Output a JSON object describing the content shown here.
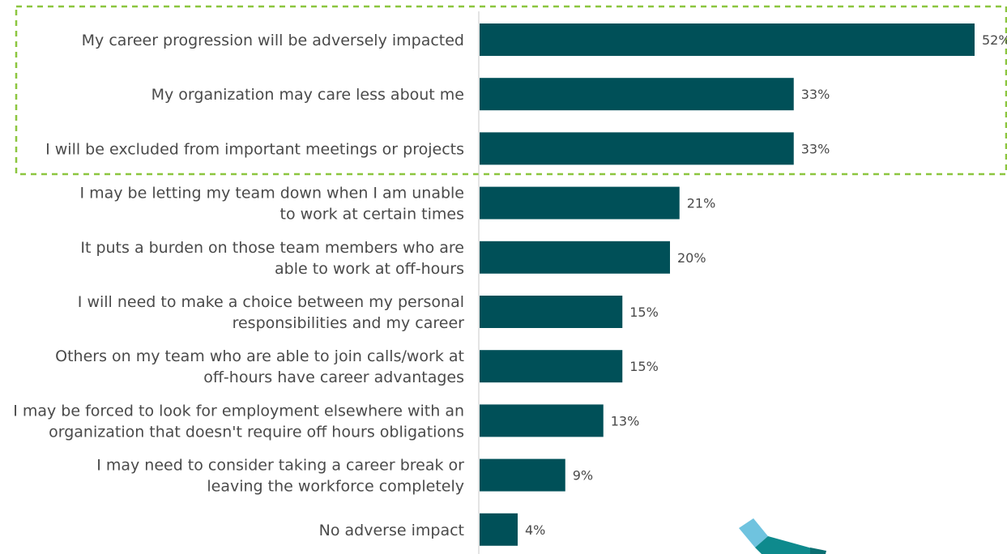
{
  "chart_data": {
    "type": "bar",
    "orientation": "horizontal",
    "categories": [
      [
        "My career progression will be adversely impacted"
      ],
      [
        "My organization may care less about me"
      ],
      [
        "I will be excluded from important meetings or projects"
      ],
      [
        "I may be letting my team down when I am unable",
        "to work at certain times"
      ],
      [
        "It puts a burden on those team members who are",
        "able to work at off-hours"
      ],
      [
        "I will need to make a choice between my personal",
        "responsibilities and my career"
      ],
      [
        "Others on my team who are able to join calls/work at",
        "off-hours have career advantages"
      ],
      [
        "I may be forced to look for employment elsewhere with an",
        "organization that doesn't require off hours obligations"
      ],
      [
        "I may need to consider taking a career break or",
        "leaving the workforce completely"
      ],
      [
        "No adverse impact"
      ]
    ],
    "values": [
      52,
      33,
      33,
      21,
      20,
      15,
      15,
      13,
      9,
      4
    ],
    "value_labels": [
      "52%",
      "33%",
      "33%",
      "21%",
      "20%",
      "15%",
      "15%",
      "13%",
      "9%",
      "4%"
    ],
    "unit": "%",
    "xlim": [
      0,
      52
    ],
    "grid": false,
    "highlight": {
      "first_n": 3,
      "style": "dashed",
      "color": "#8cc63f"
    },
    "colors": {
      "bar": "#005058",
      "text": "#4a4a4a",
      "axis": "#c8c8c8"
    }
  },
  "decoration": {
    "name": "teal-highlighter-icon",
    "colors": [
      "#0e8a8d",
      "#6fc3df"
    ]
  }
}
